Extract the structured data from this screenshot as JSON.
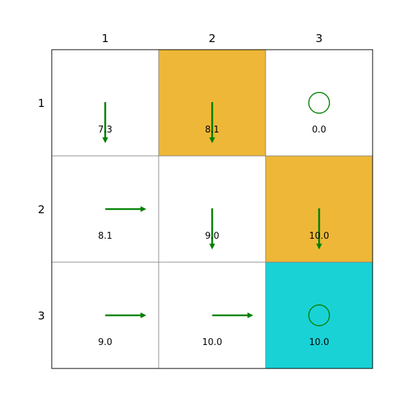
{
  "grid": {
    "col_labels": [
      "1",
      "2",
      "3"
    ],
    "row_labels": [
      "1",
      "2",
      "3"
    ],
    "colors": {
      "plain": "#ffffff",
      "hazard": "#eeb737",
      "goal": "#18d2d6",
      "policy": "#008000",
      "grid_line": "#808080"
    },
    "cells": [
      [
        {
          "value": "7.3",
          "action": "down",
          "fill": "plain"
        },
        {
          "value": "8.1",
          "action": "down",
          "fill": "hazard"
        },
        {
          "value": "0.0",
          "action": "stay",
          "fill": "plain"
        }
      ],
      [
        {
          "value": "8.1",
          "action": "right",
          "fill": "plain"
        },
        {
          "value": "9.0",
          "action": "down",
          "fill": "plain"
        },
        {
          "value": "10.0",
          "action": "down",
          "fill": "hazard"
        }
      ],
      [
        {
          "value": "9.0",
          "action": "right",
          "fill": "plain"
        },
        {
          "value": "10.0",
          "action": "right",
          "fill": "plain"
        },
        {
          "value": "10.0",
          "action": "stay",
          "fill": "goal"
        }
      ]
    ]
  }
}
